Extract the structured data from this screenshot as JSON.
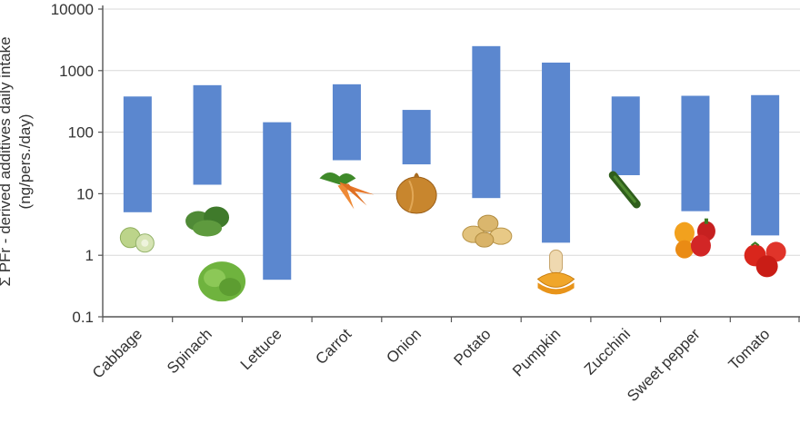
{
  "chart_data": {
    "type": "bar",
    "subtype": "floating-range",
    "scale": "log",
    "ylabel": "Σ PFr - derived additives daily intake",
    "ylabel_unit": "(ng/pers./day)",
    "ylim": [
      0.1,
      10000
    ],
    "yticks": [
      "0.1",
      "1",
      "10",
      "100",
      "1000",
      "10000"
    ],
    "grid": true,
    "categories": [
      "Cabbage",
      "Spinach",
      "Lettuce",
      "Carrot",
      "Onion",
      "Potato",
      "Pumpkin",
      "Zucchini",
      "Sweet pepper",
      "Tomato"
    ],
    "series": [
      {
        "color": "#5b87cf",
        "low": [
          5,
          14,
          0.4,
          35,
          30,
          8.5,
          1.6,
          20,
          5.2,
          2.1
        ],
        "high": [
          380,
          580,
          145,
          600,
          230,
          2500,
          1350,
          380,
          390,
          400
        ]
      }
    ]
  },
  "images": [
    {
      "category": "Cabbage",
      "icon": "cabbage-icon"
    },
    {
      "category": "Spinach",
      "icon": "spinach-icon"
    },
    {
      "category": "Lettuce",
      "icon": "lettuce-icon"
    },
    {
      "category": "Carrot",
      "icon": "carrot-icon"
    },
    {
      "category": "Onion",
      "icon": "onion-icon"
    },
    {
      "category": "Potato",
      "icon": "potato-icon"
    },
    {
      "category": "Pumpkin",
      "icon": "pumpkin-icon"
    },
    {
      "category": "Zucchini",
      "icon": "zucchini-icon"
    },
    {
      "category": "Sweet pepper",
      "icon": "sweet-pepper-icon"
    },
    {
      "category": "Tomato",
      "icon": "tomato-icon"
    }
  ]
}
